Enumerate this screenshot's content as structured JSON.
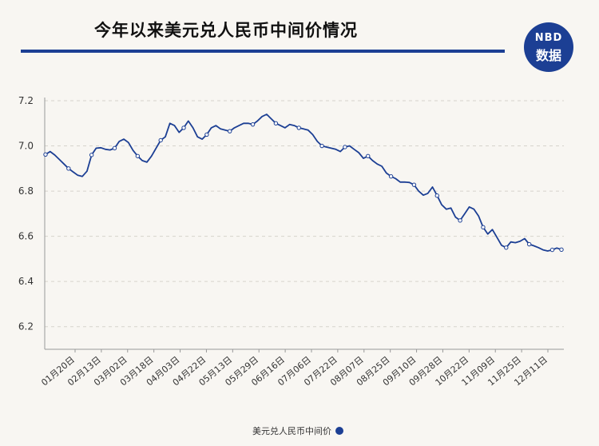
{
  "header": {
    "title": "今年以来美元兑人民币中间价情况",
    "logo_top": "NBD",
    "logo_bottom": "数据"
  },
  "colors": {
    "accent": "#1c3f94",
    "background": "#f8f6f2",
    "grid": "#d6d3cc"
  },
  "chart_data": {
    "type": "line",
    "ylim": [
      6.1,
      7.2
    ],
    "yticks": [
      6.2,
      6.4,
      6.6,
      6.8,
      7.0,
      7.2
    ],
    "y_tick_labels": [
      "6.2",
      "6.4",
      "6.6",
      "6.8",
      "7.0",
      "7.2"
    ],
    "x_tick_labels": [
      "01月20日",
      "02月13日",
      "03月02日",
      "03月18日",
      "04月03日",
      "04月22日",
      "05月13日",
      "05月29日",
      "06月16日",
      "07月06日",
      "07月22日",
      "08月07日",
      "08月25日",
      "09月10日",
      "09月28日",
      "10月22日",
      "11月09日",
      "11月25日",
      "12月11日"
    ],
    "grid": "horizontal dashed",
    "legend_position": "bottom",
    "series": [
      {
        "name": "美元兑人民币中间价",
        "values": [
          6.962,
          6.975,
          6.96,
          6.94,
          6.92,
          6.9,
          6.885,
          6.87,
          6.865,
          6.888,
          6.96,
          6.99,
          6.992,
          6.985,
          6.982,
          6.99,
          7.02,
          7.03,
          7.015,
          6.98,
          6.955,
          6.935,
          6.928,
          6.955,
          6.99,
          7.025,
          7.04,
          7.1,
          7.09,
          7.06,
          7.08,
          7.11,
          7.08,
          7.04,
          7.03,
          7.05,
          7.08,
          7.09,
          7.075,
          7.07,
          7.065,
          7.08,
          7.09,
          7.1,
          7.1,
          7.095,
          7.11,
          7.13,
          7.14,
          7.12,
          7.1,
          7.09,
          7.08,
          7.095,
          7.09,
          7.08,
          7.075,
          7.07,
          7.05,
          7.02,
          7.0,
          6.995,
          6.99,
          6.985,
          6.975,
          6.995,
          7.0,
          6.985,
          6.97,
          6.945,
          6.955,
          6.935,
          6.92,
          6.91,
          6.88,
          6.865,
          6.855,
          6.84,
          6.84,
          6.838,
          6.828,
          6.8,
          6.782,
          6.79,
          6.818,
          6.78,
          6.74,
          6.72,
          6.725,
          6.685,
          6.67,
          6.7,
          6.73,
          6.72,
          6.69,
          6.64,
          6.61,
          6.63,
          6.595,
          6.56,
          6.55,
          6.575,
          6.572,
          6.578,
          6.59,
          6.565,
          6.558,
          6.55,
          6.54,
          6.535,
          6.54,
          6.548,
          6.541
        ]
      }
    ]
  }
}
